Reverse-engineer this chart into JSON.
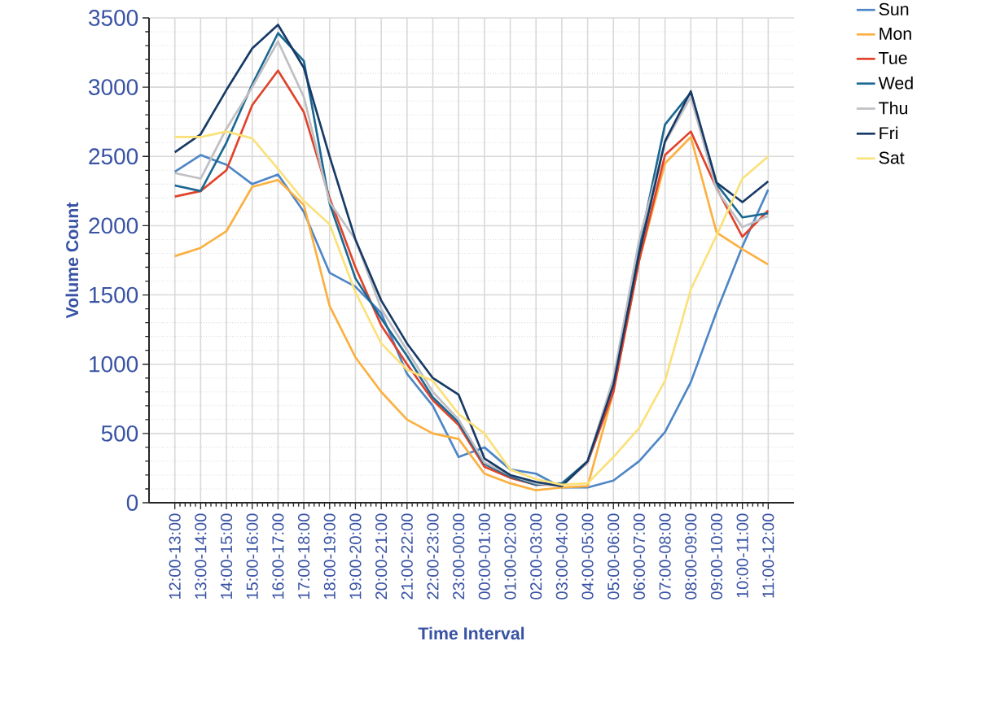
{
  "chart_data": {
    "type": "line",
    "xlabel": "Time Interval",
    "ylabel": "Volume Count",
    "categories": [
      "12:00-13:00",
      "13:00-14:00",
      "14:00-15:00",
      "15:00-16:00",
      "16:00-17:00",
      "17:00-18:00",
      "18:00-19:00",
      "19:00-20:00",
      "20:00-21:00",
      "21:00-22:00",
      "22:00-23:00",
      "23:00-00:00",
      "00:00-01:00",
      "01:00-02:00",
      "02:00-03:00",
      "03:00-04:00",
      "04:00-05:00",
      "05:00-06:00",
      "06:00-07:00",
      "07:00-08:00",
      "08:00-09:00",
      "09:00-10:00",
      "10:00-11:00",
      "11:00-12:00"
    ],
    "series": [
      {
        "name": "Sun",
        "color": "#4f86c6",
        "values": [
          2390,
          2510,
          2440,
          2300,
          2370,
          2100,
          1660,
          1560,
          1370,
          930,
          700,
          330,
          400,
          240,
          210,
          110,
          110,
          160,
          300,
          510,
          870,
          1380,
          1850,
          2260
        ]
      },
      {
        "name": "Mon",
        "color": "#fbb040",
        "values": [
          1780,
          1840,
          1960,
          2280,
          2330,
          2150,
          1420,
          1050,
          800,
          600,
          500,
          460,
          210,
          140,
          90,
          110,
          120,
          800,
          1750,
          2450,
          2640,
          1950,
          1830,
          1720
        ]
      },
      {
        "name": "Tue",
        "color": "#e0432b",
        "values": [
          2210,
          2250,
          2400,
          2870,
          3120,
          2820,
          2200,
          1700,
          1280,
          1000,
          740,
          560,
          260,
          180,
          130,
          130,
          290,
          800,
          1750,
          2510,
          2680,
          2270,
          1920,
          2110
        ]
      },
      {
        "name": "Wed",
        "color": "#1a6891",
        "values": [
          2290,
          2250,
          2600,
          3020,
          3390,
          3190,
          2160,
          1620,
          1330,
          1060,
          760,
          580,
          280,
          190,
          130,
          140,
          300,
          880,
          1850,
          2730,
          2960,
          2300,
          2060,
          2090
        ]
      },
      {
        "name": "Thu",
        "color": "#bfbfc4",
        "values": [
          2380,
          2340,
          2700,
          3000,
          3330,
          2930,
          2170,
          1900,
          1400,
          1100,
          800,
          600,
          290,
          200,
          140,
          120,
          290,
          900,
          1900,
          2600,
          2930,
          2260,
          1990,
          2070
        ]
      },
      {
        "name": "Fri",
        "color": "#173a66",
        "values": [
          2530,
          2660,
          2980,
          3280,
          3450,
          3140,
          2500,
          1900,
          1460,
          1150,
          900,
          780,
          320,
          200,
          150,
          120,
          300,
          850,
          1800,
          2610,
          2970,
          2310,
          2170,
          2320
        ]
      },
      {
        "name": "Sat",
        "color": "#fbe17a",
        "values": [
          2640,
          2640,
          2680,
          2630,
          2410,
          2180,
          2010,
          1520,
          1150,
          960,
          880,
          640,
          500,
          240,
          170,
          130,
          140,
          330,
          540,
          880,
          1540,
          1930,
          2340,
          2500
        ]
      }
    ],
    "ylim": [
      0,
      3500
    ],
    "yticks": [
      0,
      500,
      1000,
      1500,
      2000,
      2500,
      3000,
      3500
    ],
    "grid": true,
    "legend": "top right",
    "line_style": "solid"
  }
}
